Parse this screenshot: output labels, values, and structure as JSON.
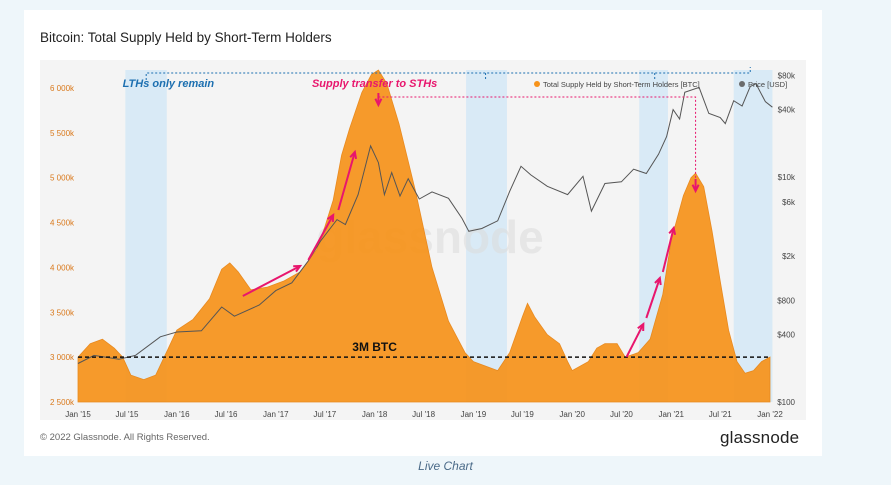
{
  "chart_data": {
    "type": "area",
    "title": "Bitcoin: Total Supply Held by Short-Term Holders",
    "x_ticks": [
      "Jan '15",
      "Jul '15",
      "Jan '16",
      "Jul '16",
      "Jan '17",
      "Jul '17",
      "Jan '18",
      "Jul '18",
      "Jan '19",
      "Jul '19",
      "Jan '20",
      "Jul '20",
      "Jan '21",
      "Jul '21",
      "Jan '22"
    ],
    "y_left_ticks": [
      "2 500k",
      "3 000k",
      "3 500k",
      "4 000k",
      "4 500k",
      "5 000k",
      "5 500k",
      "6 000k"
    ],
    "y_left_range": [
      2500000,
      6200000
    ],
    "y_right_ticks": [
      "$100",
      "$400",
      "$800",
      "$2k",
      "$6k",
      "$10k",
      "$40k",
      "$80k"
    ],
    "y_right_range": [
      100,
      90000
    ],
    "y_right_scale": "log",
    "legend": [
      {
        "label": "Total Supply Held by Short-Term Holders [BTC]",
        "color": "#f7931a"
      },
      {
        "label": "Price [USD]",
        "color": "#6b6b6b"
      }
    ],
    "legend_position": "top-right",
    "series": [
      {
        "name": "Total Supply Held by Short-Term Holders [BTC]",
        "points": [
          [
            "2015-01-01",
            3000000
          ],
          [
            "2015-02-15",
            3150000
          ],
          [
            "2015-04-01",
            3200000
          ],
          [
            "2015-05-15",
            3100000
          ],
          [
            "2015-06-15",
            3000000
          ],
          [
            "2015-07-15",
            2800000
          ],
          [
            "2015-09-01",
            2750000
          ],
          [
            "2015-10-15",
            2800000
          ],
          [
            "2015-12-01",
            3100000
          ],
          [
            "2016-01-01",
            3300000
          ],
          [
            "2016-03-01",
            3420000
          ],
          [
            "2016-05-01",
            3650000
          ],
          [
            "2016-06-15",
            3980000
          ],
          [
            "2016-07-15",
            4050000
          ],
          [
            "2016-08-15",
            3950000
          ],
          [
            "2016-10-01",
            3750000
          ],
          [
            "2016-12-01",
            3780000
          ],
          [
            "2017-02-01",
            3850000
          ],
          [
            "2017-04-01",
            3950000
          ],
          [
            "2017-06-01",
            4200000
          ],
          [
            "2017-07-01",
            4450000
          ],
          [
            "2017-08-01",
            4750000
          ],
          [
            "2017-09-01",
            5250000
          ],
          [
            "2017-10-01",
            5550000
          ],
          [
            "2017-11-15",
            5950000
          ],
          [
            "2017-12-20",
            6150000
          ],
          [
            "2018-01-15",
            6200000
          ],
          [
            "2018-02-15",
            6050000
          ],
          [
            "2018-04-01",
            5600000
          ],
          [
            "2018-06-01",
            4850000
          ],
          [
            "2018-08-01",
            4000000
          ],
          [
            "2018-10-01",
            3400000
          ],
          [
            "2018-12-01",
            3050000
          ],
          [
            "2019-01-01",
            2950000
          ],
          [
            "2019-02-15",
            2900000
          ],
          [
            "2019-04-01",
            2850000
          ],
          [
            "2019-05-15",
            3050000
          ],
          [
            "2019-07-01",
            3450000
          ],
          [
            "2019-07-20",
            3600000
          ],
          [
            "2019-08-15",
            3450000
          ],
          [
            "2019-10-01",
            3250000
          ],
          [
            "2019-11-15",
            3150000
          ],
          [
            "2019-12-15",
            2950000
          ],
          [
            "2020-01-01",
            2850000
          ],
          [
            "2020-03-01",
            2950000
          ],
          [
            "2020-04-01",
            3100000
          ],
          [
            "2020-05-01",
            3150000
          ],
          [
            "2020-06-15",
            3150000
          ],
          [
            "2020-07-15",
            3000000
          ],
          [
            "2020-09-01",
            3050000
          ],
          [
            "2020-10-15",
            3200000
          ],
          [
            "2020-12-01",
            3700000
          ],
          [
            "2021-01-01",
            4300000
          ],
          [
            "2021-02-15",
            4800000
          ],
          [
            "2021-03-15",
            5000000
          ],
          [
            "2021-04-01",
            5050000
          ],
          [
            "2021-05-01",
            4900000
          ],
          [
            "2021-06-01",
            4400000
          ],
          [
            "2021-07-01",
            3850000
          ],
          [
            "2021-08-01",
            3300000
          ],
          [
            "2021-09-01",
            2950000
          ],
          [
            "2021-10-01",
            2820000
          ],
          [
            "2021-11-01",
            2850000
          ],
          [
            "2021-12-01",
            2950000
          ],
          [
            "2022-01-01",
            3000000
          ]
        ]
      },
      {
        "name": "Price [USD]",
        "points": [
          [
            "2015-01-01",
            220
          ],
          [
            "2015-03-01",
            260
          ],
          [
            "2015-06-01",
            240
          ],
          [
            "2015-08-01",
            260
          ],
          [
            "2015-11-01",
            380
          ],
          [
            "2016-01-01",
            420
          ],
          [
            "2016-04-01",
            430
          ],
          [
            "2016-06-15",
            700
          ],
          [
            "2016-08-01",
            580
          ],
          [
            "2016-11-01",
            730
          ],
          [
            "2017-01-01",
            980
          ],
          [
            "2017-03-01",
            1150
          ],
          [
            "2017-05-01",
            1800
          ],
          [
            "2017-06-15",
            2700
          ],
          [
            "2017-08-15",
            4200
          ],
          [
            "2017-09-15",
            3800
          ],
          [
            "2017-11-01",
            7000
          ],
          [
            "2017-12-17",
            19000
          ],
          [
            "2018-01-15",
            13500
          ],
          [
            "2018-02-06",
            7000
          ],
          [
            "2018-03-05",
            11000
          ],
          [
            "2018-04-05",
            6800
          ],
          [
            "2018-05-05",
            9700
          ],
          [
            "2018-06-15",
            6400
          ],
          [
            "2018-08-01",
            7400
          ],
          [
            "2018-10-01",
            6500
          ],
          [
            "2018-11-20",
            4300
          ],
          [
            "2018-12-15",
            3300
          ],
          [
            "2019-02-01",
            3500
          ],
          [
            "2019-04-01",
            4100
          ],
          [
            "2019-05-15",
            7500
          ],
          [
            "2019-06-26",
            12500
          ],
          [
            "2019-08-01",
            10500
          ],
          [
            "2019-10-01",
            8300
          ],
          [
            "2019-12-15",
            7000
          ],
          [
            "2020-02-10",
            10200
          ],
          [
            "2020-03-12",
            5000
          ],
          [
            "2020-05-01",
            8800
          ],
          [
            "2020-07-01",
            9100
          ],
          [
            "2020-08-15",
            11800
          ],
          [
            "2020-10-01",
            10800
          ],
          [
            "2020-11-15",
            16000
          ],
          [
            "2020-12-15",
            23000
          ],
          [
            "2021-01-08",
            40000
          ],
          [
            "2021-02-01",
            33000
          ],
          [
            "2021-02-20",
            57000
          ],
          [
            "2021-04-14",
            63000
          ],
          [
            "2021-05-20",
            37000
          ],
          [
            "2021-07-01",
            34000
          ],
          [
            "2021-07-20",
            30000
          ],
          [
            "2021-08-20",
            48000
          ],
          [
            "2021-09-20",
            43000
          ],
          [
            "2021-10-20",
            64000
          ],
          [
            "2021-11-10",
            68000
          ],
          [
            "2021-12-15",
            47000
          ],
          [
            "2022-01-10",
            42000
          ]
        ]
      }
    ],
    "shaded_periods": [
      [
        "2015-06-25",
        "2015-11-25"
      ],
      [
        "2018-12-05",
        "2019-05-05"
      ],
      [
        "2020-09-05",
        "2020-12-20"
      ],
      [
        "2021-08-20",
        "2022-01-10"
      ]
    ],
    "reference_line": {
      "value": 3000000,
      "label": "3M BTC"
    },
    "annotations": [
      {
        "text": "LTHs only remain",
        "color": "#1c6fb0"
      },
      {
        "text": "Supply transfer to STHs",
        "color": "#e8166d"
      }
    ],
    "watermark": "glassnode",
    "grid": false
  },
  "footer": {
    "copyright": "© 2022 Glassnode. All Rights Reserved.",
    "brand": "glassnode"
  },
  "caption": "Live Chart"
}
